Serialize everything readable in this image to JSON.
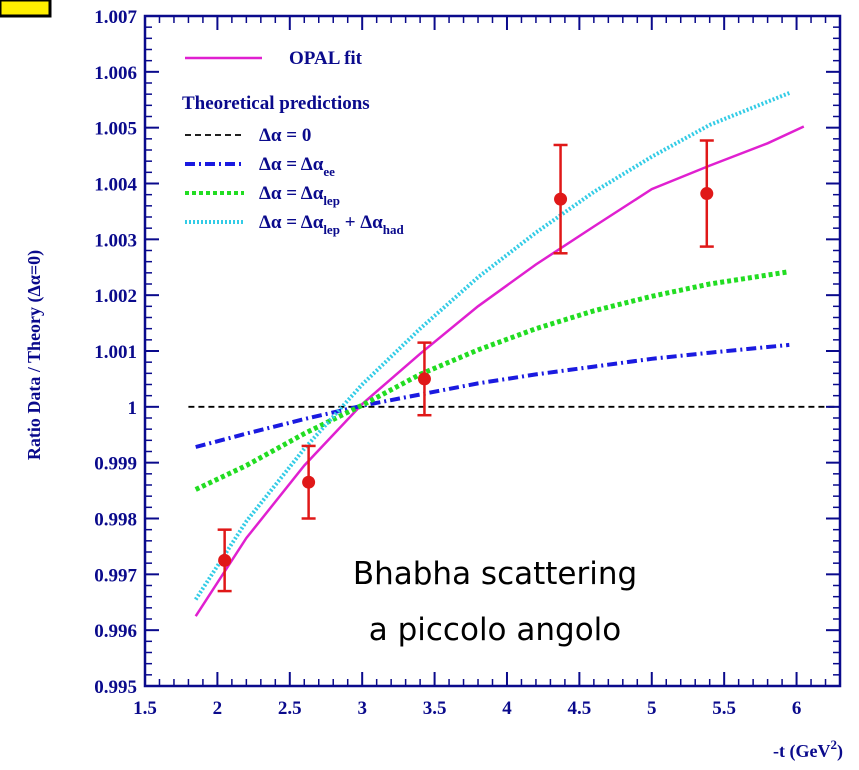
{
  "chart_data": {
    "type": "line",
    "title": "",
    "xlabel": "-t (GeV²)",
    "xlabel_main": "-t (GeV",
    "xlabel_sup": "2",
    "xlabel_close": ")",
    "ylabel": "Ratio  Data / Theory (Δα=0)",
    "xlim": [
      1.5,
      6.3
    ],
    "ylim": [
      0.995,
      1.007
    ],
    "x_ticks": [
      "1.5",
      "2",
      "2.5",
      "3",
      "3.5",
      "4",
      "4.5",
      "5",
      "5.5",
      "6"
    ],
    "y_ticks": [
      "0.995",
      "0.996",
      "0.997",
      "0.998",
      "0.999",
      "1",
      "1.001",
      "1.002",
      "1.003",
      "1.004",
      "1.005",
      "1.006",
      "1.007"
    ],
    "x_tick_values": [
      1.5,
      2,
      2.5,
      3,
      3.5,
      4,
      4.5,
      5,
      5.5,
      6
    ],
    "y_tick_values": [
      0.995,
      0.996,
      0.997,
      0.998,
      0.999,
      1.0,
      1.001,
      1.002,
      1.003,
      1.004,
      1.005,
      1.006,
      1.007
    ],
    "grid": false,
    "legend_position": "top-left",
    "series": [
      {
        "name": "OPAL fit",
        "color": "#e020d0",
        "style": "solid",
        "x": [
          1.85,
          2.2,
          2.6,
          3.0,
          3.4,
          3.8,
          4.2,
          4.6,
          5.0,
          5.4,
          5.8,
          6.05
        ],
        "y": [
          0.99625,
          0.99765,
          0.99895,
          1.00005,
          1.00095,
          1.0018,
          1.00255,
          1.00323,
          1.0039,
          1.00432,
          1.00472,
          1.00502
        ]
      },
      {
        "name": "Δα = 0",
        "color": "#000000",
        "style": "dashed",
        "x": [
          1.8,
          6.3
        ],
        "y": [
          1.0,
          1.0
        ]
      },
      {
        "name": "Δα = Δα_ee",
        "color": "#1a1ae0",
        "style": "dashdot",
        "x": [
          1.85,
          2.2,
          2.6,
          3.0,
          3.4,
          3.8,
          4.2,
          4.6,
          5.0,
          5.4,
          5.95
        ],
        "y": [
          0.99928,
          0.99952,
          0.99978,
          1.00002,
          1.00022,
          1.00042,
          1.00058,
          1.00072,
          1.00086,
          1.00097,
          1.00111
        ]
      },
      {
        "name": "Δα = Δα_lep",
        "color": "#22dd22",
        "style": "dotted",
        "x": [
          1.85,
          2.2,
          2.6,
          3.0,
          3.4,
          3.8,
          4.2,
          4.6,
          5.0,
          5.4,
          5.95
        ],
        "y": [
          0.99852,
          0.99895,
          0.99952,
          1.00003,
          1.00058,
          1.00102,
          1.0014,
          1.00172,
          1.00198,
          1.0022,
          1.00242
        ]
      },
      {
        "name": "Δα = Δα_lep + Δα_had",
        "color": "#33cce6",
        "style": "finedotted",
        "x": [
          1.85,
          2.2,
          2.6,
          3.0,
          3.4,
          3.8,
          4.2,
          4.6,
          5.0,
          5.4,
          5.95
        ],
        "y": [
          0.99655,
          0.99795,
          0.99925,
          1.0004,
          1.0014,
          1.00232,
          1.00312,
          1.00385,
          1.00448,
          1.00505,
          1.00562
        ]
      }
    ],
    "data_points": {
      "color": "#e01818",
      "points": [
        {
          "x": 2.05,
          "y": 0.99725,
          "err": 0.00055
        },
        {
          "x": 2.63,
          "y": 0.99865,
          "err": 0.00065
        },
        {
          "x": 3.43,
          "y": 1.0005,
          "err": 0.00065
        },
        {
          "x": 4.37,
          "y": 1.00372,
          "err": 0.00097
        },
        {
          "x": 5.38,
          "y": 1.00382,
          "err": 0.00095
        }
      ]
    },
    "legend": {
      "fit_label": "OPAL fit",
      "section_title": "Theoretical predictions",
      "entries": [
        {
          "prefix": "Δα = 0",
          "sub": "",
          "mid": "",
          "sub2": ""
        },
        {
          "prefix": "Δα = Δα",
          "sub": "ee",
          "mid": "",
          "sub2": ""
        },
        {
          "prefix": "Δα = Δα",
          "sub": "lep",
          "mid": "",
          "sub2": ""
        },
        {
          "prefix": "Δα = Δα",
          "sub": "lep",
          "mid": " + Δα",
          "sub2": "had"
        }
      ]
    },
    "annotation_lines": [
      "Bhabha scattering",
      "a piccolo angolo"
    ]
  },
  "colors": {
    "frame": "#0a0a8c",
    "marker_box_fill": "#ffee00",
    "marker_box_stroke": "#000000",
    "background": "#ffffff"
  }
}
